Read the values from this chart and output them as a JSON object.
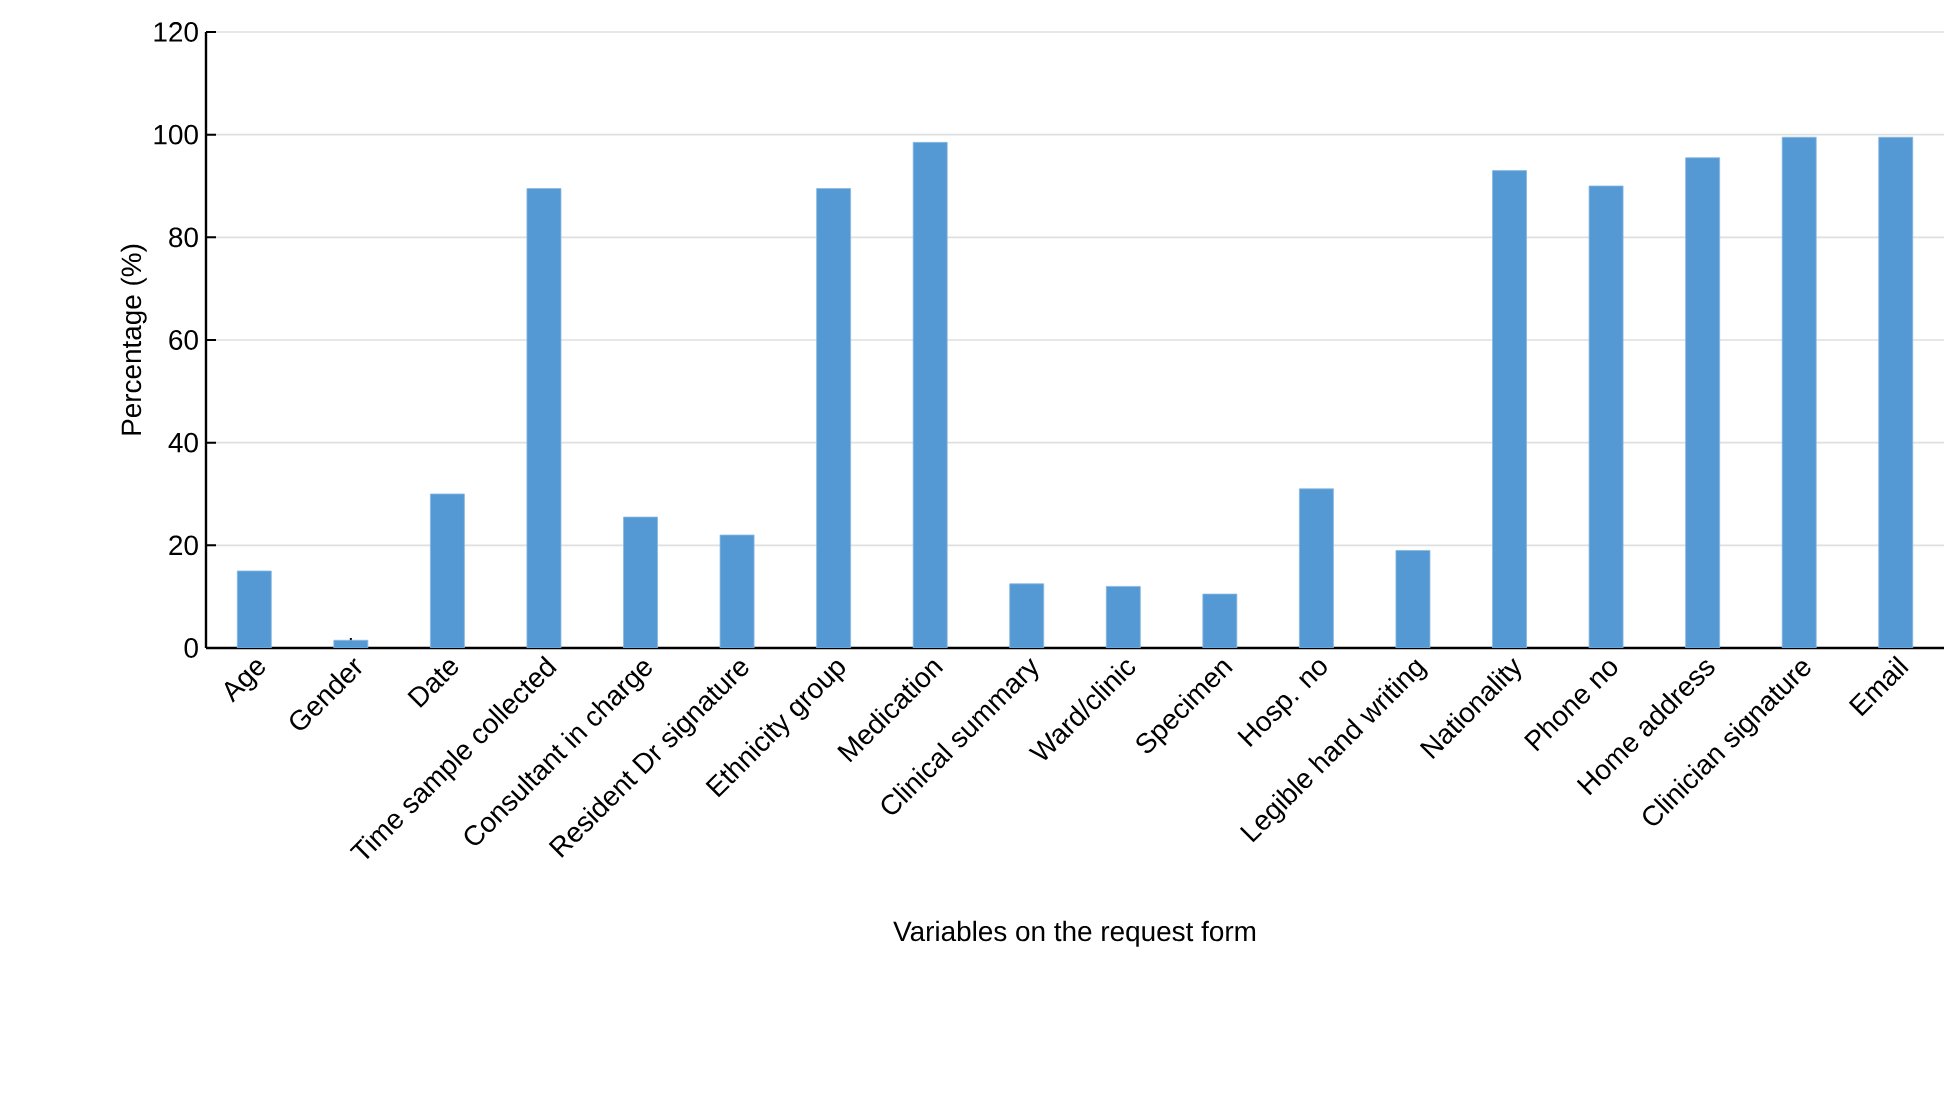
{
  "chart_data": {
    "type": "bar",
    "xlabel": "Variables on the request form",
    "ylabel": "Percentage (%)",
    "categories": [
      "Age",
      "Gender",
      "Date",
      "Time sample collected",
      "Consultant in charge",
      "Resident Dr signature",
      "Ethnicity group",
      "Medication",
      "Clinical summary",
      "Ward/clinic",
      "Specimen",
      "Hosp. no",
      "Legible hand writing",
      "Nationality",
      "Phone no",
      "Home address",
      "Clinician signature",
      "Email"
    ],
    "values": [
      15,
      1.5,
      30,
      89.5,
      25.5,
      22,
      89.5,
      98.5,
      12.5,
      12,
      10.5,
      31,
      19,
      93,
      90,
      95.5,
      99.5,
      99.5
    ],
    "color": "#5499d4",
    "ylim": [
      0,
      120
    ],
    "yticks": [
      0,
      20,
      40,
      60,
      80,
      100,
      120
    ],
    "grid": "y"
  }
}
